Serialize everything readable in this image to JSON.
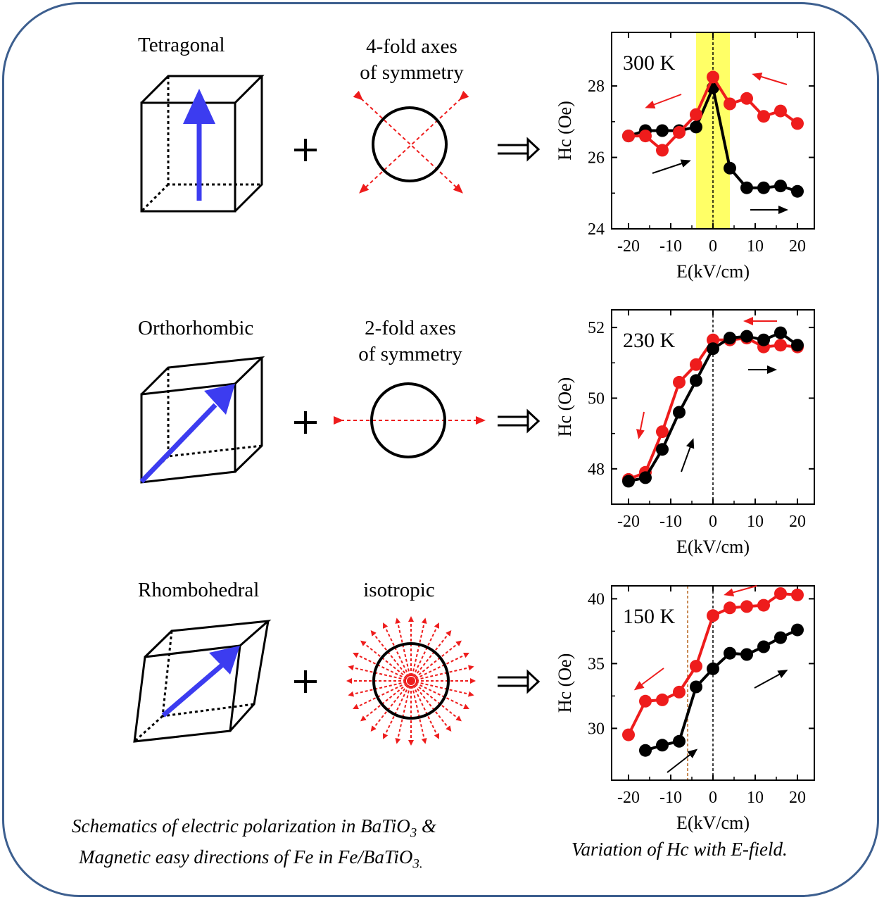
{
  "rows": [
    {
      "phase": "Tetragonal",
      "symmetry_line1": "4-fold axes",
      "symmetry_line2": "of symmetry"
    },
    {
      "phase": "Orthorhombic",
      "symmetry_line1": "2-fold axes",
      "symmetry_line2": "of symmetry"
    },
    {
      "phase": "Rhombohedral",
      "symmetry_line1": "isotropic",
      "symmetry_line2": ""
    }
  ],
  "symbols": {
    "plus": "+",
    "implies": "⇒"
  },
  "caption_left": {
    "line1": "Schematics of electric polarization in BaTiO",
    "line1_sub": "3",
    "line1_end": " &",
    "line2": "Magnetic easy directions of Fe in Fe/BaTiO",
    "line2_sub": "3.",
    "line2_end": ""
  },
  "caption_right": "Variation of Hc with E-field.",
  "colors": {
    "red": "#ee1c1c",
    "black": "#000000",
    "blue": "#3c3cf0",
    "highlight": "#ffff66",
    "frame": "#3d5f8f"
  },
  "chart_data": [
    {
      "type": "line",
      "annotation": "300 K",
      "xlabel": "E(kV/cm)",
      "ylabel": "Hc (Oe)",
      "xlim": [
        -24,
        24
      ],
      "ylim": [
        24,
        29.5
      ],
      "xticks": [
        -20,
        -10,
        0,
        10,
        20
      ],
      "yticks": [
        24,
        26,
        28
      ],
      "xtick_labels": [
        "-20",
        "-10",
        "0",
        "10",
        "20"
      ],
      "ytick_labels": [
        "24",
        "26",
        "28"
      ],
      "highlight_band": [
        -4,
        4
      ],
      "vline": [
        0
      ],
      "series": [
        {
          "color": "black",
          "x": [
            -20,
            -16,
            -12,
            -8,
            -4,
            0,
            4,
            8,
            12,
            16,
            20
          ],
          "y": [
            26.6,
            26.75,
            26.75,
            26.75,
            26.85,
            27.95,
            25.7,
            25.15,
            25.15,
            25.2,
            25.05
          ]
        },
        {
          "color": "red",
          "x": [
            -20,
            -16,
            -12,
            -8,
            -4,
            0,
            4,
            8,
            12,
            16,
            20
          ],
          "y": [
            26.6,
            26.6,
            26.2,
            26.7,
            27.2,
            28.25,
            27.5,
            27.65,
            27.15,
            27.3,
            26.95
          ]
        }
      ]
    },
    {
      "type": "line",
      "annotation": "230 K",
      "xlabel": "E(kV/cm)",
      "ylabel": "Hc (Oe)",
      "xlim": [
        -24,
        24
      ],
      "ylim": [
        47,
        52.5
      ],
      "xticks": [
        -20,
        -10,
        0,
        10,
        20
      ],
      "yticks": [
        48,
        50,
        52
      ],
      "xtick_labels": [
        "-20",
        "-10",
        "0",
        "10",
        "20"
      ],
      "ytick_labels": [
        "48",
        "50",
        "52"
      ],
      "vline": [
        0
      ],
      "series": [
        {
          "color": "red",
          "x": [
            -20,
            -16,
            -12,
            -8,
            -4,
            0,
            4,
            8,
            12,
            16,
            20
          ],
          "y": [
            47.7,
            47.9,
            49.05,
            50.45,
            50.95,
            51.65,
            51.65,
            51.7,
            51.45,
            51.5,
            51.45
          ]
        },
        {
          "color": "black",
          "x": [
            -20,
            -16,
            -12,
            -8,
            -4,
            0,
            4,
            8,
            12,
            16,
            20
          ],
          "y": [
            47.65,
            47.75,
            48.55,
            49.6,
            50.5,
            51.4,
            51.7,
            51.75,
            51.65,
            51.85,
            51.5
          ]
        }
      ]
    },
    {
      "type": "line",
      "annotation": "150 K",
      "xlabel": "E(kV/cm)",
      "ylabel": "Hc (Oe)",
      "xlim": [
        -24,
        24
      ],
      "ylim": [
        26,
        41
      ],
      "xticks": [
        -20,
        -10,
        0,
        10,
        20
      ],
      "yticks": [
        30,
        35,
        40
      ],
      "xtick_labels": [
        "-20",
        "-10",
        "0",
        "10",
        "20"
      ],
      "ytick_labels": [
        "30",
        "35",
        "40"
      ],
      "vline": [
        -6,
        0
      ],
      "series": [
        {
          "color": "red",
          "x": [
            -20,
            -16,
            -12,
            -8,
            -4,
            0,
            4,
            8,
            12,
            16,
            20
          ],
          "y": [
            29.5,
            32.1,
            32.2,
            32.8,
            34.8,
            38.7,
            39.3,
            39.4,
            39.5,
            40.4,
            40.3
          ]
        },
        {
          "color": "black",
          "x": [
            -16,
            -12,
            -8,
            -4,
            0,
            4,
            8,
            12,
            16,
            20
          ],
          "y": [
            28.3,
            28.7,
            29.0,
            33.2,
            34.6,
            35.8,
            35.7,
            36.3,
            37.0,
            37.6
          ]
        }
      ]
    }
  ]
}
